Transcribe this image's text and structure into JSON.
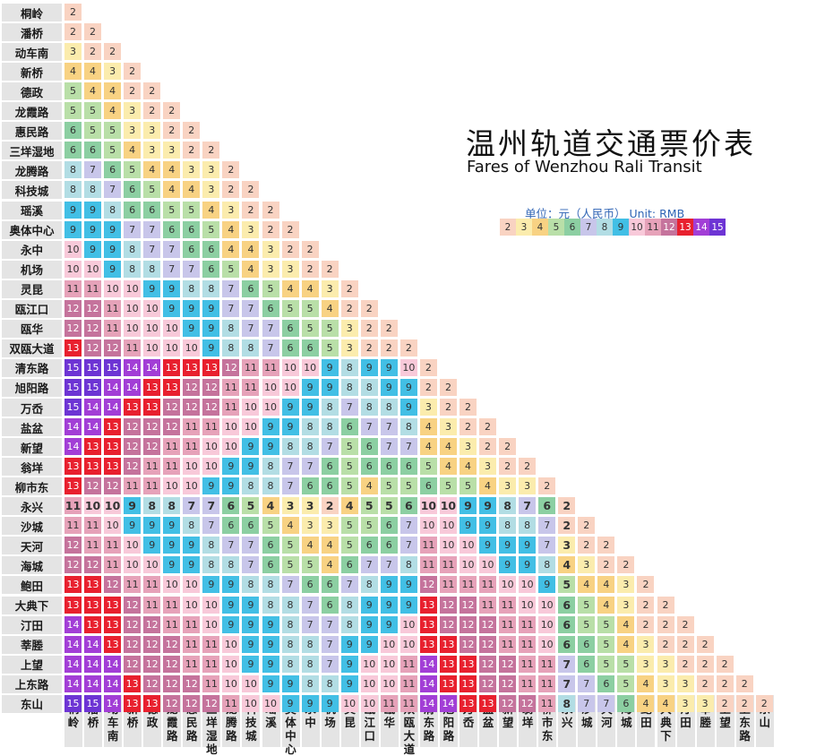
{
  "title": "温州轨道交通票价表",
  "subtitle": "Fares of Wenzhou Rali Transit",
  "unit_label": "单位：元（人民币） Unit: RMB",
  "stations": [
    "桐岭",
    "潘桥",
    "动车南",
    "新桥",
    "德政",
    "龙霞路",
    "惠民路",
    "三垟湿地",
    "龙腾路",
    "科技城",
    "瑶溪",
    "奥体中心",
    "永中",
    "机场",
    "灵昆",
    "瓯江口",
    "瓯华",
    "双瓯大道",
    "清东路",
    "旭阳路",
    "万岙",
    "盐盆",
    "新望",
    "翁垟",
    "柳市东",
    "永兴",
    "沙城",
    "天河",
    "海城",
    "鲍田",
    "大典下",
    "汀田",
    "莘塍",
    "上望",
    "上东路",
    "东山"
  ],
  "highlighted_station": "永兴",
  "fare_colors": {
    "2": "#f9d3c2",
    "3": "#fbecad",
    "4": "#f8d283",
    "5": "#b9dfa8",
    "6": "#8ccfa2",
    "7": "#c8c6ea",
    "8": "#b2dde4",
    "9": "#42bfe5",
    "10": "#f8c9d9",
    "11": "#e6a2b9",
    "12": "#c5739c",
    "13": "#e8202e",
    "14": "#a23ed6",
    "15": "#6d34d4"
  },
  "legend_values": [
    2,
    3,
    4,
    5,
    6,
    7,
    8,
    9,
    10,
    11,
    12,
    13,
    14,
    15
  ],
  "fares": [
    [
      2
    ],
    [
      2,
      2
    ],
    [
      3,
      2,
      2
    ],
    [
      4,
      4,
      3,
      2
    ],
    [
      5,
      4,
      4,
      2,
      2
    ],
    [
      5,
      5,
      4,
      3,
      2,
      2
    ],
    [
      6,
      5,
      5,
      3,
      3,
      2,
      2
    ],
    [
      6,
      6,
      5,
      4,
      3,
      3,
      2,
      2
    ],
    [
      8,
      7,
      6,
      5,
      4,
      4,
      3,
      3,
      2
    ],
    [
      8,
      8,
      7,
      6,
      5,
      4,
      4,
      3,
      2,
      2
    ],
    [
      9,
      9,
      8,
      6,
      6,
      5,
      5,
      4,
      3,
      2,
      2
    ],
    [
      9,
      9,
      9,
      7,
      7,
      6,
      6,
      5,
      4,
      3,
      2,
      2
    ],
    [
      10,
      9,
      9,
      8,
      7,
      7,
      6,
      6,
      4,
      4,
      3,
      2,
      2
    ],
    [
      10,
      10,
      9,
      8,
      8,
      7,
      7,
      6,
      5,
      4,
      3,
      3,
      2,
      2
    ],
    [
      11,
      11,
      10,
      10,
      9,
      9,
      8,
      8,
      7,
      6,
      5,
      4,
      4,
      3,
      2
    ],
    [
      12,
      12,
      11,
      10,
      10,
      9,
      9,
      9,
      7,
      7,
      6,
      5,
      5,
      4,
      2,
      2
    ],
    [
      12,
      12,
      11,
      10,
      10,
      10,
      9,
      9,
      8,
      7,
      7,
      6,
      5,
      5,
      3,
      2,
      2
    ],
    [
      13,
      12,
      12,
      11,
      10,
      10,
      10,
      9,
      8,
      8,
      7,
      6,
      6,
      5,
      3,
      2,
      2,
      2
    ],
    [
      15,
      15,
      15,
      14,
      14,
      13,
      13,
      13,
      12,
      11,
      11,
      10,
      10,
      9,
      8,
      9,
      9,
      10,
      2
    ],
    [
      15,
      15,
      14,
      14,
      13,
      13,
      12,
      12,
      11,
      11,
      10,
      10,
      9,
      9,
      8,
      8,
      9,
      9,
      2,
      2
    ],
    [
      15,
      14,
      14,
      13,
      13,
      12,
      12,
      12,
      11,
      10,
      10,
      9,
      9,
      8,
      7,
      8,
      8,
      9,
      3,
      2,
      2
    ],
    [
      14,
      14,
      13,
      12,
      12,
      12,
      11,
      11,
      10,
      10,
      9,
      9,
      8,
      8,
      6,
      7,
      7,
      8,
      4,
      3,
      2,
      2
    ],
    [
      14,
      13,
      13,
      12,
      12,
      11,
      11,
      10,
      10,
      9,
      9,
      8,
      8,
      7,
      5,
      6,
      7,
      7,
      4,
      4,
      3,
      2,
      2
    ],
    [
      13,
      13,
      13,
      12,
      11,
      11,
      10,
      10,
      9,
      9,
      8,
      7,
      7,
      6,
      5,
      6,
      6,
      6,
      5,
      4,
      4,
      3,
      2,
      2
    ],
    [
      13,
      12,
      12,
      11,
      11,
      10,
      10,
      9,
      9,
      8,
      8,
      7,
      6,
      6,
      5,
      4,
      5,
      5,
      6,
      5,
      5,
      4,
      3,
      3,
      2
    ],
    [
      11,
      10,
      10,
      9,
      8,
      8,
      7,
      7,
      6,
      5,
      4,
      3,
      3,
      2,
      4,
      5,
      5,
      6,
      10,
      10,
      9,
      9,
      8,
      7,
      6,
      2
    ],
    [
      11,
      11,
      10,
      9,
      9,
      9,
      8,
      7,
      6,
      6,
      5,
      4,
      3,
      3,
      5,
      5,
      6,
      7,
      10,
      10,
      9,
      9,
      8,
      8,
      7,
      2,
      2
    ],
    [
      12,
      11,
      11,
      10,
      9,
      9,
      9,
      8,
      7,
      7,
      6,
      5,
      4,
      4,
      5,
      6,
      6,
      7,
      11,
      10,
      10,
      9,
      9,
      9,
      7,
      3,
      2,
      2
    ],
    [
      12,
      12,
      11,
      10,
      10,
      9,
      9,
      8,
      8,
      7,
      6,
      5,
      5,
      4,
      6,
      7,
      7,
      8,
      11,
      11,
      10,
      10,
      9,
      9,
      8,
      4,
      3,
      2,
      2
    ],
    [
      13,
      13,
      12,
      11,
      11,
      10,
      10,
      9,
      9,
      8,
      8,
      7,
      6,
      6,
      7,
      8,
      9,
      9,
      12,
      11,
      11,
      11,
      10,
      10,
      9,
      5,
      4,
      4,
      3,
      2
    ],
    [
      13,
      13,
      13,
      12,
      11,
      11,
      10,
      10,
      9,
      9,
      8,
      8,
      7,
      6,
      8,
      9,
      9,
      9,
      13,
      12,
      12,
      11,
      11,
      10,
      10,
      6,
      5,
      4,
      3,
      2,
      2
    ],
    [
      14,
      13,
      13,
      12,
      12,
      11,
      11,
      10,
      9,
      9,
      9,
      8,
      7,
      7,
      8,
      9,
      9,
      10,
      13,
      12,
      12,
      12,
      11,
      11,
      10,
      6,
      5,
      5,
      4,
      2,
      2,
      2
    ],
    [
      14,
      14,
      13,
      12,
      12,
      12,
      11,
      11,
      10,
      9,
      9,
      8,
      8,
      7,
      9,
      9,
      10,
      10,
      13,
      13,
      12,
      12,
      11,
      11,
      10,
      6,
      6,
      5,
      4,
      3,
      2,
      2,
      2
    ],
    [
      14,
      14,
      14,
      12,
      12,
      12,
      11,
      11,
      10,
      9,
      9,
      8,
      8,
      7,
      9,
      10,
      10,
      11,
      14,
      13,
      13,
      12,
      12,
      11,
      11,
      7,
      6,
      5,
      5,
      3,
      3,
      2,
      2,
      2
    ],
    [
      14,
      14,
      14,
      13,
      12,
      12,
      12,
      11,
      10,
      10,
      9,
      9,
      8,
      8,
      9,
      10,
      10,
      11,
      14,
      13,
      13,
      12,
      12,
      11,
      11,
      7,
      7,
      6,
      5,
      4,
      3,
      3,
      2,
      2,
      2
    ],
    [
      15,
      15,
      14,
      13,
      13,
      12,
      12,
      12,
      11,
      10,
      10,
      9,
      9,
      9,
      10,
      10,
      11,
      11,
      14,
      14,
      13,
      13,
      12,
      12,
      11,
      8,
      7,
      7,
      6,
      4,
      4,
      3,
      3,
      2,
      2,
      2
    ]
  ]
}
